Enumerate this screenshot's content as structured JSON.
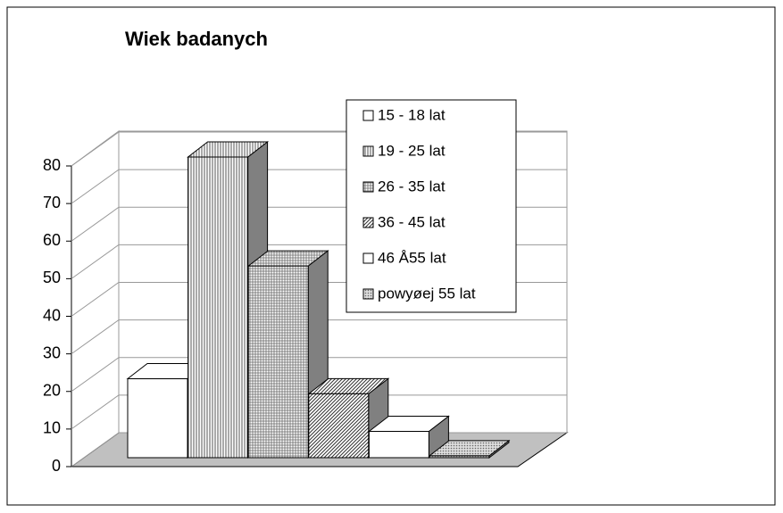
{
  "chart_data": {
    "type": "bar3d",
    "title": "Wiek badanych",
    "categories": [
      "15 - 18 lat",
      "19 - 25 lat",
      "26 - 35 lat",
      "36 - 45 lat",
      "46 Å55 lat",
      "powyøej 55 lat"
    ],
    "values": [
      21,
      80,
      51,
      17,
      7,
      0.5
    ],
    "ylim": [
      0,
      80
    ],
    "yticks": [
      0,
      10,
      20,
      30,
      40,
      50,
      60,
      70,
      80
    ],
    "grid": true,
    "legend": "top-right"
  }
}
